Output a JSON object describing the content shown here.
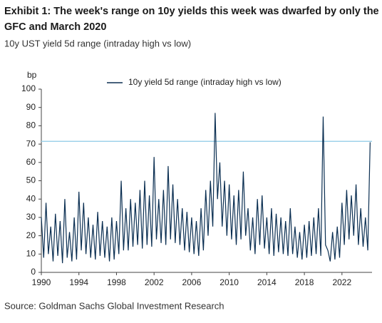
{
  "chart_data": {
    "type": "line",
    "title": "Exhibit 1: The week's range on 10y yields this week was dwarfed by only the GFC and March 2020",
    "subtitle": "10y UST yield 5d range (intraday high vs low)",
    "ylabel": "bp",
    "source": "Source: Goldman Sachs Global Investment Research",
    "x": [
      1990,
      1990.25,
      1990.5,
      1990.75,
      1991,
      1991.25,
      1991.5,
      1991.75,
      1992,
      1992.25,
      1992.5,
      1992.75,
      1993,
      1993.25,
      1993.5,
      1993.75,
      1994,
      1994.25,
      1994.5,
      1994.75,
      1995,
      1995.25,
      1995.5,
      1995.75,
      1996,
      1996.25,
      1996.5,
      1996.75,
      1997,
      1997.25,
      1997.5,
      1997.75,
      1998,
      1998.25,
      1998.5,
      1998.75,
      1999,
      1999.25,
      1999.5,
      1999.75,
      2000,
      2000.25,
      2000.5,
      2000.75,
      2001,
      2001.25,
      2001.5,
      2001.75,
      2002,
      2002.25,
      2002.5,
      2002.75,
      2003,
      2003.25,
      2003.5,
      2003.75,
      2004,
      2004.25,
      2004.5,
      2004.75,
      2005,
      2005.25,
      2005.5,
      2005.75,
      2006,
      2006.25,
      2006.5,
      2006.75,
      2007,
      2007.25,
      2007.5,
      2007.75,
      2008,
      2008.25,
      2008.5,
      2008.75,
      2009,
      2009.25,
      2009.5,
      2009.75,
      2010,
      2010.25,
      2010.5,
      2010.75,
      2011,
      2011.25,
      2011.5,
      2011.75,
      2012,
      2012.25,
      2012.5,
      2012.75,
      2013,
      2013.25,
      2013.5,
      2013.75,
      2014,
      2014.25,
      2014.5,
      2014.75,
      2015,
      2015.25,
      2015.5,
      2015.75,
      2016,
      2016.25,
      2016.5,
      2016.75,
      2017,
      2017.25,
      2017.5,
      2017.75,
      2018,
      2018.25,
      2018.5,
      2018.75,
      2019,
      2019.25,
      2019.5,
      2019.75,
      2020,
      2020.25,
      2020.5,
      2020.75,
      2021,
      2021.25,
      2021.5,
      2021.75,
      2022,
      2022.25,
      2022.5,
      2022.75,
      2023,
      2023.25,
      2023.5,
      2023.75,
      2024,
      2024.25,
      2024.5,
      2024.75,
      2025
    ],
    "series": [
      {
        "name": "10y yield 5d range (intraday high vs low)",
        "color": "#0b2f52",
        "values": [
          30,
          8,
          38,
          10,
          25,
          6,
          32,
          9,
          28,
          5,
          40,
          8,
          22,
          6,
          30,
          7,
          44,
          12,
          38,
          10,
          30,
          8,
          26,
          7,
          33,
          9,
          28,
          8,
          25,
          6,
          30,
          7,
          28,
          10,
          50,
          12,
          35,
          12,
          40,
          14,
          38,
          15,
          45,
          13,
          50,
          15,
          42,
          14,
          63,
          18,
          40,
          16,
          45,
          15,
          58,
          18,
          48,
          16,
          40,
          15,
          35,
          12,
          33,
          11,
          30,
          10,
          28,
          9,
          35,
          12,
          45,
          20,
          50,
          25,
          87,
          40,
          60,
          25,
          50,
          20,
          48,
          18,
          42,
          15,
          45,
          18,
          55,
          20,
          35,
          12,
          30,
          10,
          40,
          15,
          42,
          13,
          30,
          10,
          35,
          9,
          32,
          11,
          30,
          10,
          28,
          9,
          35,
          10,
          25,
          8,
          22,
          7,
          26,
          8,
          28,
          9,
          30,
          10,
          35,
          9,
          85,
          15,
          12,
          6,
          22,
          7,
          25,
          8,
          38,
          15,
          45,
          18,
          42,
          20,
          48,
          15,
          35,
          14,
          30,
          12,
          71
        ]
      }
    ],
    "xlim": [
      1990,
      2025.2
    ],
    "xticks": [
      1990,
      1994,
      1998,
      2002,
      2006,
      2010,
      2014,
      2018,
      2022
    ],
    "ylim": [
      0,
      100
    ],
    "yticks": [
      0,
      10,
      20,
      30,
      40,
      50,
      60,
      70,
      80,
      90,
      100
    ],
    "reference_line": {
      "value": 71.5,
      "color": "#9fd2ea"
    }
  }
}
